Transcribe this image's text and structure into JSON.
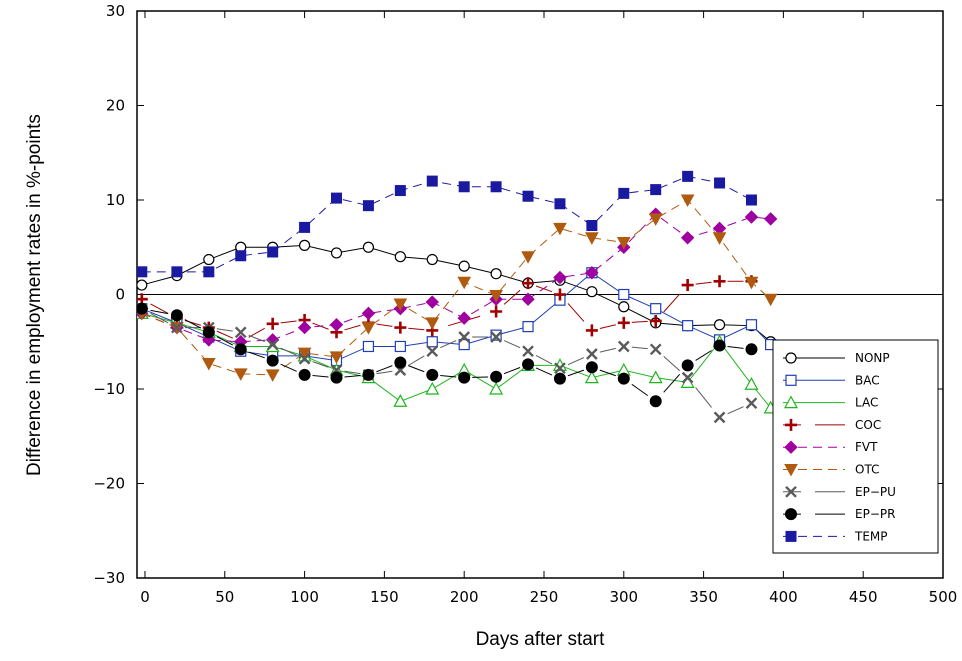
{
  "chart_data": {
    "type": "line",
    "title": "",
    "xlabel": "Days after start",
    "ylabel": "Difference in employment rates in %-points",
    "xlim": [
      -5,
      500
    ],
    "ylim": [
      -30,
      30
    ],
    "x_ticks": [
      0,
      50,
      100,
      150,
      200,
      250,
      300,
      350,
      400,
      450,
      500
    ],
    "y_ticks": [
      -30,
      -20,
      -10,
      0,
      10,
      20,
      30
    ],
    "x_tick_labels": [
      "0",
      "50",
      "100",
      "150",
      "200",
      "250",
      "300",
      "350",
      "400",
      "450",
      "500"
    ],
    "y_tick_labels": [
      "−30",
      "−20",
      "−10",
      "0",
      "10",
      "20",
      "30"
    ],
    "zero_line": true,
    "grid": false,
    "legend_position": "bottom-right",
    "series": [
      {
        "name": "NONP",
        "color": "#000000",
        "dash": "solid",
        "marker": "open-circle",
        "x": [
          -2,
          20,
          40,
          60,
          80,
          100,
          120,
          140,
          160,
          180,
          200,
          220,
          240,
          260,
          280,
          300,
          320,
          340,
          360,
          380,
          392
        ],
        "y": [
          1.0,
          2.0,
          3.7,
          5.0,
          5.0,
          5.2,
          4.4,
          5.0,
          4.0,
          3.7,
          3.0,
          2.2,
          1.2,
          1.5,
          0.3,
          -1.3,
          -3.0,
          -3.3,
          -3.2,
          -3.3,
          -5.0
        ]
      },
      {
        "name": "BAC",
        "color": "#1f3fb5",
        "dash": "solid",
        "marker": "open-square",
        "x": [
          -2,
          20,
          40,
          60,
          80,
          100,
          120,
          140,
          160,
          180,
          200,
          220,
          240,
          260,
          280,
          300,
          320,
          340,
          360,
          380,
          392
        ],
        "y": [
          -1.5,
          -3.0,
          -4.5,
          -6.0,
          -6.5,
          -6.5,
          -7.0,
          -5.5,
          -5.5,
          -5.0,
          -5.3,
          -4.3,
          -3.4,
          -0.6,
          2.3,
          0.0,
          -1.5,
          -3.3,
          -4.8,
          -3.2,
          -5.3
        ]
      },
      {
        "name": "LAC",
        "color": "#1fb51f",
        "dash": "solid",
        "marker": "open-triangle",
        "x": [
          -2,
          20,
          40,
          60,
          80,
          100,
          120,
          140,
          160,
          180,
          200,
          220,
          240,
          260,
          280,
          300,
          320,
          340,
          360,
          380,
          392
        ],
        "y": [
          -2.0,
          -3.0,
          -4.0,
          -5.5,
          -5.5,
          -6.5,
          -8.0,
          -8.8,
          -11.3,
          -10.0,
          -8.0,
          -10.0,
          -7.5,
          -7.5,
          -8.8,
          -8.0,
          -8.8,
          -9.3,
          -5.0,
          -9.5,
          -12.0
        ]
      },
      {
        "name": "COC",
        "color": "#a00000",
        "dash": "segments",
        "marker": "plus",
        "x": [
          -2,
          20,
          40,
          60,
          80,
          100,
          120,
          140,
          160,
          180,
          220,
          240,
          260,
          280,
          300,
          320,
          340,
          360,
          380
        ],
        "y": [
          -0.5,
          -2.5,
          -3.5,
          -5.0,
          -3.1,
          -2.7,
          -4.0,
          -3.0,
          -3.5,
          -3.8,
          -1.8,
          1.2,
          0.0,
          -3.8,
          -3.0,
          -2.8,
          1.0,
          1.4,
          1.4
        ]
      },
      {
        "name": "FVT",
        "color": "#a000a0",
        "dash": "dashed",
        "marker": "filled-diamond",
        "x": [
          -2,
          20,
          40,
          60,
          80,
          100,
          120,
          140,
          160,
          180,
          200,
          220,
          240,
          260,
          280,
          300,
          320,
          340,
          360,
          380,
          392
        ],
        "y": [
          -2.0,
          -3.5,
          -4.8,
          -5.0,
          -4.8,
          -3.5,
          -3.2,
          -2.0,
          -1.5,
          -0.8,
          -2.5,
          -0.5,
          -0.5,
          1.8,
          2.3,
          5.0,
          8.5,
          6.0,
          7.0,
          8.2,
          8.0
        ]
      },
      {
        "name": "OTC",
        "color": "#b05a10",
        "dash": "dashed",
        "marker": "filled-triangle-down",
        "x": [
          -2,
          20,
          40,
          60,
          80,
          100,
          120,
          140,
          160,
          180,
          200,
          220,
          240,
          260,
          280,
          300,
          320,
          340,
          360,
          380,
          392
        ],
        "y": [
          -2.0,
          -3.5,
          -7.3,
          -8.4,
          -8.5,
          -6.2,
          -6.6,
          -3.5,
          -1.0,
          -3.0,
          1.3,
          -0.1,
          4.0,
          7.0,
          6.0,
          5.5,
          8.0,
          10.0,
          6.0,
          1.3,
          -0.5
        ]
      },
      {
        "name": "EP−PU",
        "color": "#5a5a5a",
        "dash": "segments",
        "marker": "x",
        "x": [
          -2,
          20,
          40,
          60,
          80,
          100,
          120,
          140,
          160,
          180,
          200,
          220,
          240,
          260,
          280,
          300,
          320,
          340,
          360,
          380
        ],
        "y": [
          -1.5,
          -3.5,
          -3.5,
          -4.0,
          -5.3,
          -6.8,
          -8.0,
          -8.5,
          -8.0,
          -6.0,
          -4.5,
          -4.5,
          -6.0,
          -7.8,
          -6.3,
          -5.5,
          -5.8,
          -8.8,
          -13.0,
          -11.5
        ]
      },
      {
        "name": "EP−PR",
        "color": "#000000",
        "dash": "segments",
        "marker": "filled-circle",
        "x": [
          -2,
          20,
          40,
          60,
          80,
          100,
          120,
          140,
          160,
          180,
          200,
          220,
          240,
          260,
          280,
          300,
          320,
          340,
          360,
          380
        ],
        "y": [
          -1.5,
          -2.2,
          -4.0,
          -5.8,
          -7.0,
          -8.5,
          -8.8,
          -8.5,
          -7.2,
          -8.5,
          -8.8,
          -8.7,
          -7.4,
          -8.9,
          -7.7,
          -8.9,
          -11.3,
          -7.5,
          -5.4,
          -5.8
        ]
      },
      {
        "name": "TEMP",
        "color": "#1a1aa0",
        "dash": "dashed",
        "marker": "filled-square",
        "x": [
          -2,
          20,
          40,
          60,
          80,
          100,
          120,
          140,
          160,
          180,
          200,
          220,
          240,
          260,
          280,
          300,
          320,
          340,
          360,
          380
        ],
        "y": [
          2.4,
          2.4,
          2.4,
          4.1,
          4.5,
          7.1,
          10.2,
          9.4,
          11.0,
          12.0,
          11.4,
          11.4,
          10.4,
          9.6,
          7.3,
          10.7,
          11.1,
          12.5,
          11.8,
          10.0
        ]
      }
    ]
  }
}
